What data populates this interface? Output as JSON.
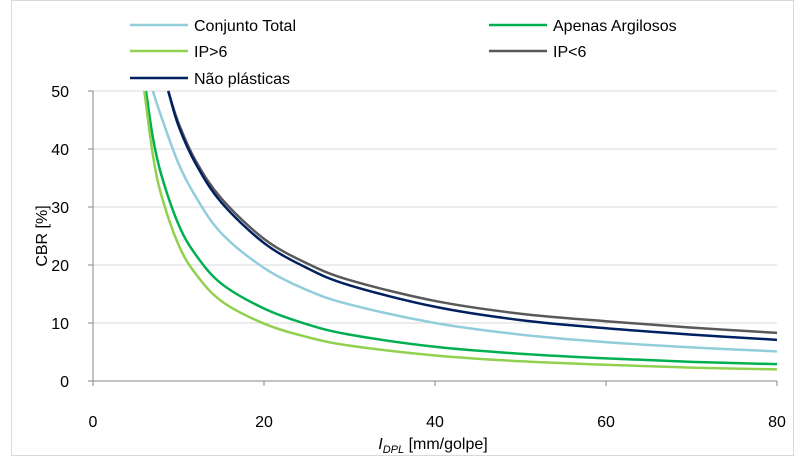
{
  "chart_data": {
    "type": "line",
    "xlabel": {
      "italic": "I",
      "subscript": "DPL",
      "rest": " [mm/golpe]"
    },
    "ylabel": "CBR [%]",
    "xlim": [
      0,
      80
    ],
    "ylim": [
      0,
      50
    ],
    "x_ticks": [
      "0",
      "20",
      "40",
      "60",
      "80"
    ],
    "y_ticks": [
      "0",
      "10",
      "20",
      "30",
      "40",
      "50"
    ],
    "grid": "horizontal",
    "legend_position": "top",
    "series": [
      {
        "name": "Conjunto Total",
        "color": "#92cddc",
        "x": [
          7,
          8,
          10,
          12,
          15,
          20,
          25,
          30,
          40,
          50,
          60,
          70,
          80
        ],
        "y": [
          50,
          45.5,
          37.5,
          31.8,
          25.5,
          19.5,
          15.7,
          13.2,
          10,
          8,
          6.7,
          5.8,
          5.1
        ]
      },
      {
        "name": "Apenas Argilosos",
        "color": "#00b050",
        "x": [
          6.2,
          7,
          8,
          10,
          12,
          15,
          20,
          25,
          30,
          40,
          50,
          60,
          70,
          80
        ],
        "y": [
          50,
          42,
          35.5,
          27,
          21.8,
          16.8,
          12.5,
          9.8,
          8,
          5.9,
          4.7,
          3.9,
          3.3,
          2.9
        ]
      },
      {
        "name": "IP>6",
        "color": "#92d050",
        "x": [
          6,
          7,
          8,
          10,
          12,
          15,
          20,
          25,
          30,
          40,
          50,
          60,
          70,
          80
        ],
        "y": [
          50,
          39,
          32,
          23.5,
          18.5,
          13.8,
          9.9,
          7.6,
          6.1,
          4.4,
          3.4,
          2.8,
          2.3,
          2
        ]
      },
      {
        "name": "IP<6",
        "color": "#595959",
        "x": [
          8.8,
          10,
          12,
          15,
          20,
          25,
          30,
          40,
          50,
          60,
          70,
          80
        ],
        "y": [
          50,
          44.5,
          38,
          31.5,
          24.5,
          20.3,
          17.4,
          13.8,
          11.6,
          10.3,
          9.2,
          8.3
        ]
      },
      {
        "name": "Não plásticas",
        "color": "#002060",
        "x": [
          8.8,
          10,
          12,
          15,
          20,
          25,
          30,
          40,
          50,
          60,
          70,
          80
        ],
        "y": [
          50,
          44,
          37.5,
          30.8,
          23.8,
          19.5,
          16.5,
          12.8,
          10.5,
          9.1,
          8,
          7.1
        ]
      }
    ]
  }
}
